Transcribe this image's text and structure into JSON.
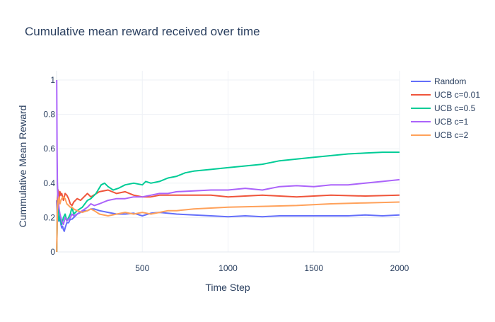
{
  "chart_data": {
    "type": "line",
    "title": "Cumulative mean reward received over time",
    "xlabel": "Time Step",
    "ylabel": "Cummulative Mean Reward",
    "xlim": [
      0,
      2000
    ],
    "ylim": [
      0,
      1
    ],
    "x_ticks": [
      500,
      1000,
      1500,
      2000
    ],
    "y_ticks": [
      0,
      0.2,
      0.4,
      0.6,
      0.8,
      1
    ],
    "x_tick_labels": [
      "500",
      "1000",
      "1500",
      "2000"
    ],
    "y_tick_labels": [
      "0",
      "0.2",
      "0.4",
      "0.6",
      "0.8",
      "1"
    ],
    "grid": true,
    "legend_position": "right",
    "series": [
      {
        "name": "Random",
        "color": "#636efa",
        "x": [
          1,
          5,
          10,
          15,
          20,
          25,
          30,
          35,
          40,
          45,
          50,
          60,
          70,
          80,
          90,
          100,
          120,
          140,
          160,
          180,
          200,
          220,
          250,
          300,
          350,
          400,
          450,
          500,
          550,
          600,
          700,
          800,
          900,
          1000,
          1100,
          1200,
          1300,
          1400,
          1500,
          1600,
          1700,
          1800,
          1900,
          2000
        ],
        "y": [
          0.3,
          0.2,
          0.18,
          0.22,
          0.2,
          0.16,
          0.14,
          0.15,
          0.13,
          0.12,
          0.14,
          0.17,
          0.17,
          0.19,
          0.19,
          0.2,
          0.22,
          0.23,
          0.24,
          0.24,
          0.25,
          0.25,
          0.24,
          0.23,
          0.22,
          0.22,
          0.225,
          0.21,
          0.225,
          0.23,
          0.22,
          0.215,
          0.21,
          0.205,
          0.21,
          0.205,
          0.21,
          0.21,
          0.21,
          0.21,
          0.21,
          0.215,
          0.21,
          0.215
        ]
      },
      {
        "name": "UCB c=0.01",
        "color": "#ef553b",
        "x": [
          1,
          5,
          10,
          15,
          20,
          25,
          30,
          40,
          50,
          60,
          70,
          80,
          90,
          100,
          120,
          140,
          160,
          180,
          200,
          250,
          300,
          350,
          400,
          450,
          500,
          550,
          600,
          700,
          800,
          900,
          1000,
          1200,
          1400,
          1600,
          1800,
          2000
        ],
        "y": [
          0,
          0.3,
          0.36,
          0.3,
          0.35,
          0.33,
          0.34,
          0.3,
          0.34,
          0.33,
          0.31,
          0.28,
          0.27,
          0.29,
          0.31,
          0.3,
          0.32,
          0.34,
          0.32,
          0.35,
          0.36,
          0.34,
          0.35,
          0.33,
          0.32,
          0.32,
          0.33,
          0.33,
          0.33,
          0.33,
          0.32,
          0.33,
          0.32,
          0.33,
          0.325,
          0.33
        ]
      },
      {
        "name": "UCB c=0.5",
        "color": "#00cc96",
        "x": [
          1,
          5,
          10,
          15,
          20,
          30,
          40,
          50,
          60,
          70,
          80,
          90,
          100,
          120,
          150,
          180,
          200,
          230,
          260,
          280,
          300,
          330,
          360,
          400,
          450,
          500,
          520,
          550,
          600,
          650,
          700,
          750,
          800,
          900,
          1000,
          1100,
          1200,
          1300,
          1400,
          1500,
          1600,
          1700,
          1800,
          1900,
          2000
        ],
        "y": [
          0,
          0.25,
          0.3,
          0.18,
          0.2,
          0.16,
          0.2,
          0.22,
          0.18,
          0.2,
          0.22,
          0.26,
          0.22,
          0.24,
          0.26,
          0.3,
          0.31,
          0.34,
          0.39,
          0.4,
          0.38,
          0.36,
          0.37,
          0.39,
          0.4,
          0.39,
          0.41,
          0.4,
          0.41,
          0.43,
          0.44,
          0.46,
          0.47,
          0.48,
          0.49,
          0.5,
          0.51,
          0.53,
          0.54,
          0.55,
          0.56,
          0.57,
          0.575,
          0.58,
          0.58
        ]
      },
      {
        "name": "UCB c=1",
        "color": "#ab63fa",
        "x": [
          1,
          3,
          5,
          7,
          10,
          15,
          20,
          25,
          30,
          40,
          50,
          60,
          70,
          80,
          90,
          100,
          120,
          150,
          180,
          200,
          220,
          250,
          300,
          350,
          400,
          450,
          500,
          550,
          600,
          650,
          700,
          800,
          900,
          1000,
          1100,
          1200,
          1300,
          1400,
          1500,
          1600,
          1700,
          1800,
          1900,
          2000
        ],
        "y": [
          1,
          0.6,
          0.4,
          0.35,
          0.3,
          0.25,
          0.22,
          0.2,
          0.18,
          0.16,
          0.2,
          0.18,
          0.19,
          0.2,
          0.22,
          0.21,
          0.22,
          0.24,
          0.26,
          0.28,
          0.27,
          0.28,
          0.3,
          0.31,
          0.31,
          0.32,
          0.32,
          0.33,
          0.34,
          0.34,
          0.35,
          0.355,
          0.36,
          0.36,
          0.37,
          0.36,
          0.38,
          0.385,
          0.38,
          0.39,
          0.39,
          0.4,
          0.41,
          0.42
        ]
      },
      {
        "name": "UCB c=2",
        "color": "#ffa15a",
        "x": [
          1,
          5,
          10,
          15,
          20,
          25,
          30,
          40,
          50,
          60,
          70,
          80,
          90,
          100,
          120,
          150,
          180,
          200,
          220,
          250,
          300,
          350,
          400,
          450,
          500,
          550,
          600,
          650,
          700,
          800,
          900,
          1000,
          1200,
          1400,
          1600,
          1800,
          2000
        ],
        "y": [
          0,
          0.25,
          0.3,
          0.32,
          0.28,
          0.3,
          0.31,
          0.32,
          0.31,
          0.28,
          0.27,
          0.26,
          0.26,
          0.25,
          0.24,
          0.23,
          0.24,
          0.25,
          0.24,
          0.22,
          0.21,
          0.22,
          0.23,
          0.22,
          0.23,
          0.22,
          0.23,
          0.24,
          0.24,
          0.25,
          0.255,
          0.26,
          0.265,
          0.27,
          0.28,
          0.285,
          0.29
        ]
      }
    ]
  }
}
